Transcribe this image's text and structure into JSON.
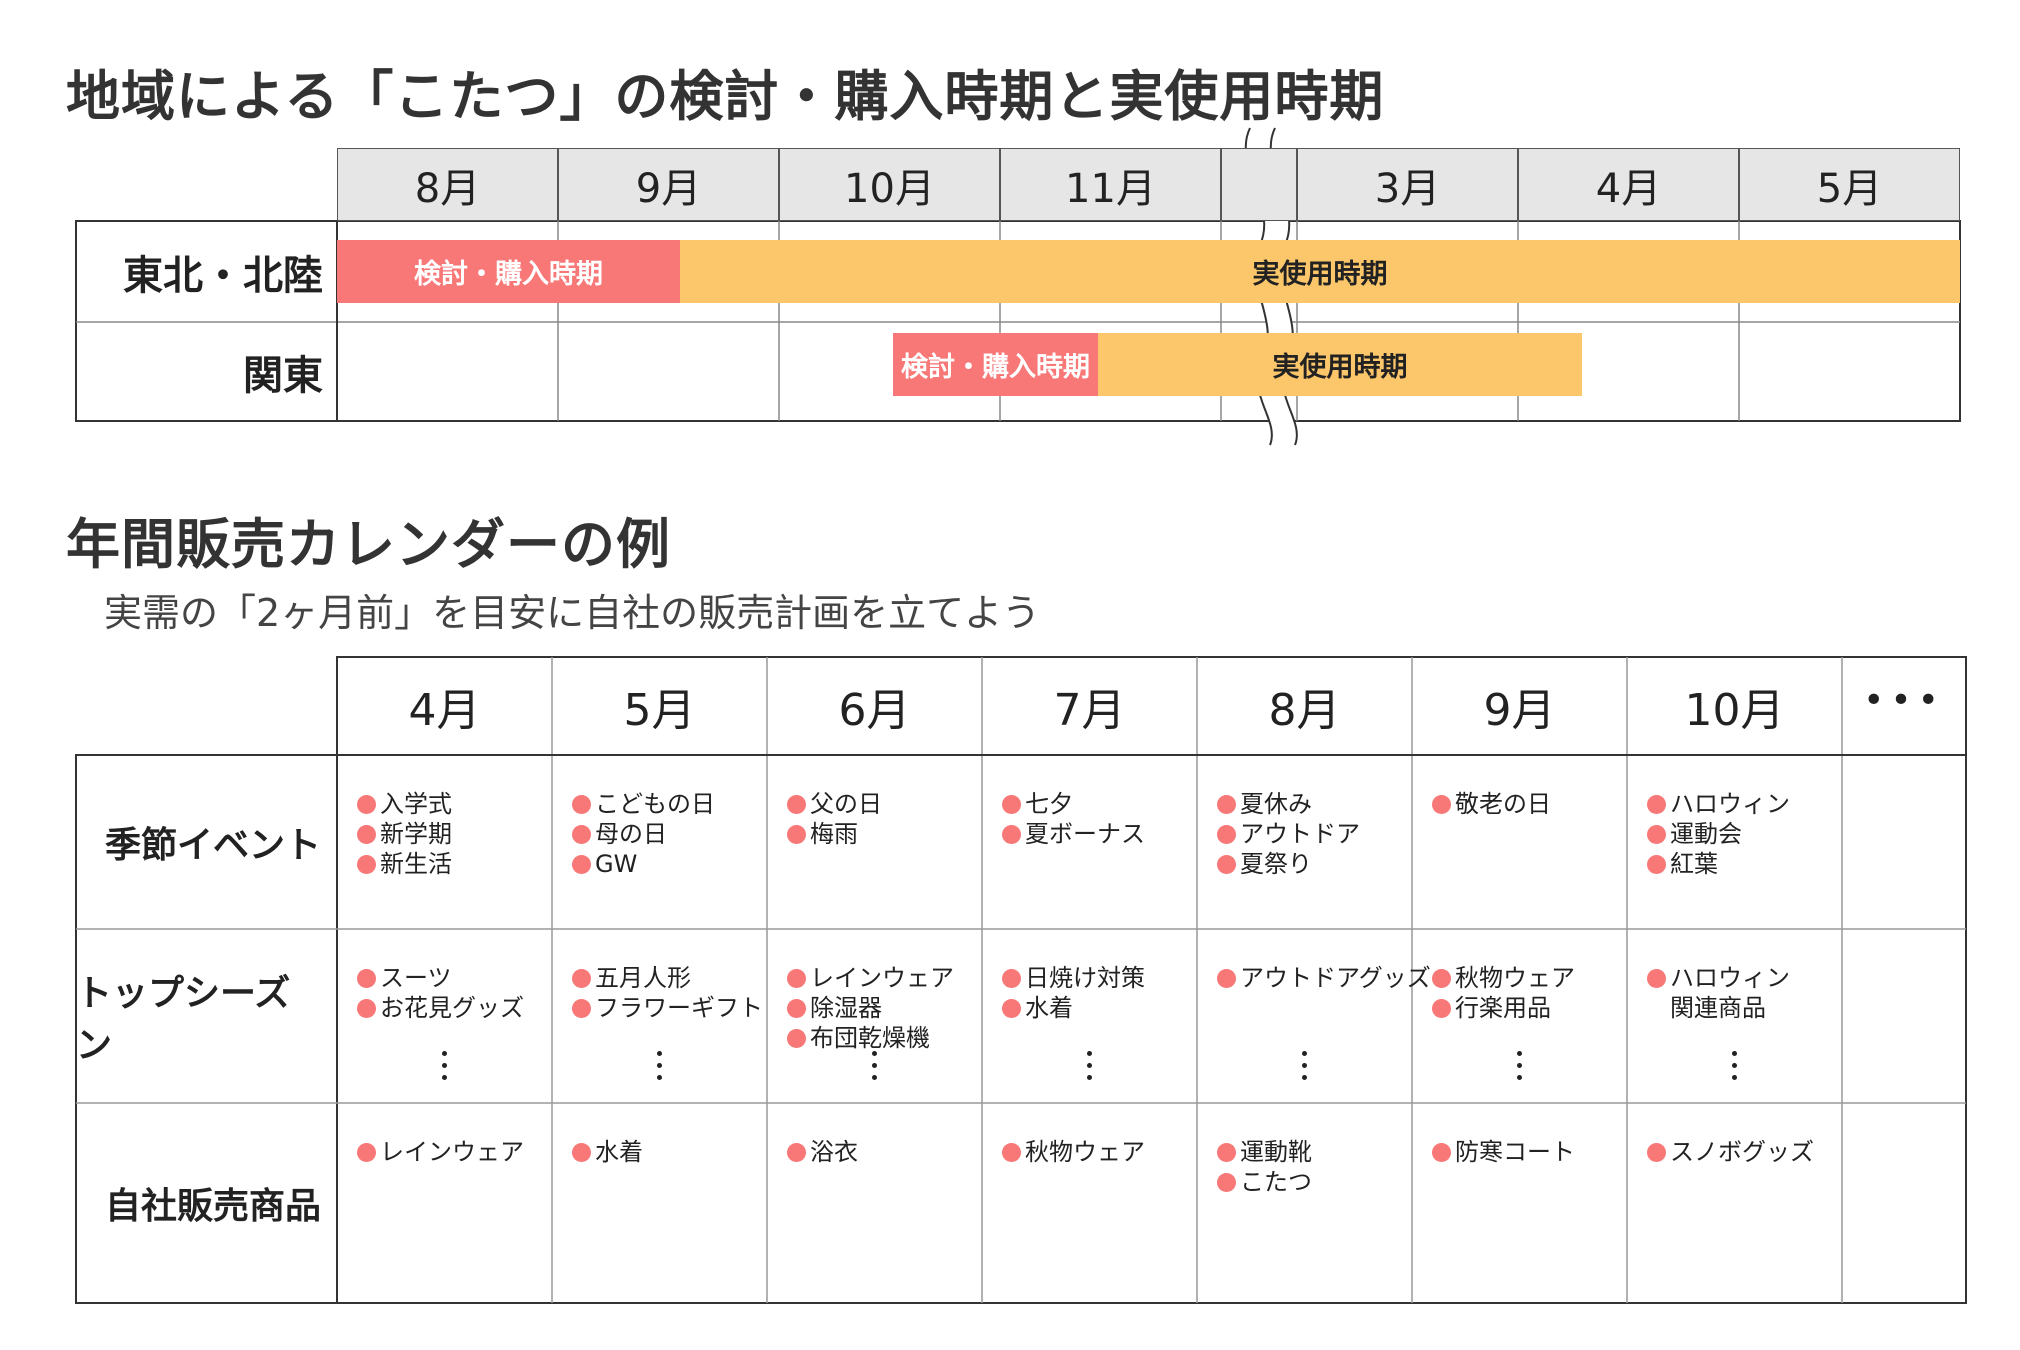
{
  "colors": {
    "pink": "#f87777",
    "orange": "#fcc66b",
    "header_gray": "#e6e6e6",
    "line": "#555555"
  },
  "section1": {
    "title": "地域による「こたつ」の検討・購入時期と実使用時期",
    "months": [
      "8月",
      "9月",
      "10月",
      "11月",
      "",
      "3月",
      "4月",
      "5月"
    ],
    "rows": [
      {
        "label": "東北・北陸",
        "bars": [
          {
            "type": "pink",
            "label": "検討・購入時期"
          },
          {
            "type": "orange",
            "label": "実使用時期"
          }
        ]
      },
      {
        "label": "関東",
        "bars": [
          {
            "type": "pink",
            "label": "検討・購入時期"
          },
          {
            "type": "orange",
            "label": "実使用時期"
          }
        ]
      }
    ]
  },
  "section2": {
    "title": "年間販売カレンダーの例",
    "subtitle": "実需の「2ヶ月前」を目安に自社の販売計画を立てよう",
    "months": [
      "4月",
      "5月",
      "6月",
      "7月",
      "8月",
      "9月",
      "10月",
      "•••"
    ],
    "rows": [
      {
        "label": "季節イベント",
        "cells": [
          [
            "入学式",
            "新学期",
            "新生活"
          ],
          [
            "こどもの日",
            "母の日",
            "GW"
          ],
          [
            "父の日",
            "梅雨"
          ],
          [
            "七夕",
            "夏ボーナス"
          ],
          [
            "夏休み",
            "アウトドア",
            "夏祭り"
          ],
          [
            "敬老の日"
          ],
          [
            "ハロウィン",
            "運動会",
            "紅葉"
          ],
          []
        ]
      },
      {
        "label": "トップシーズン",
        "cells": [
          [
            "スーツ",
            "お花見グッズ"
          ],
          [
            "五月人形",
            "フラワーギフト"
          ],
          [
            "レインウェア",
            "除湿器",
            "布団乾燥機"
          ],
          [
            "日焼け対策",
            "水着"
          ],
          [
            "アウトドアグッズ"
          ],
          [
            "秋物ウェア",
            "行楽用品"
          ],
          [
            "ハロウィン",
            "関連商品"
          ],
          []
        ]
      },
      {
        "label": "自社販売商品",
        "cells": [
          [
            "レインウェア"
          ],
          [
            "水着"
          ],
          [
            "浴衣"
          ],
          [
            "秋物ウェア"
          ],
          [
            "運動靴",
            "こたつ"
          ],
          [
            "防寒コート"
          ],
          [
            "スノボグッズ"
          ],
          []
        ]
      }
    ]
  }
}
